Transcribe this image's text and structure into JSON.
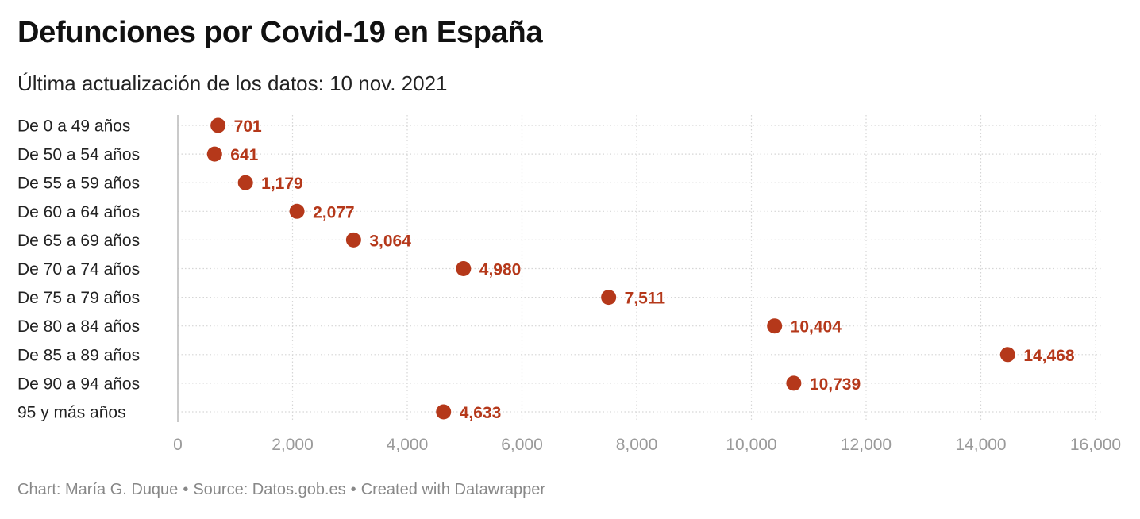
{
  "title": "Defunciones por Covid-19 en España",
  "subtitle": "Última actualización de los datos: 10 nov. 2021",
  "footer": {
    "chart_by": "Chart: María G. Duque",
    "source": "Source: Datos.gob.es",
    "created_with": "Created with Datawrapper",
    "separator": "•"
  },
  "colors": {
    "dot": "#b5381a",
    "value_label": "#b5381a",
    "grid": "#d6d6d6",
    "axis_text": "#9a9a9a"
  },
  "chart_data": {
    "type": "scatter",
    "categories": [
      "De 0 a 49 años",
      "De 50 a 54 años",
      "De 55 a 59 años",
      "De 60 a 64 años",
      "De 65 a 69 años",
      "De 70 a 74 años",
      "De 75 a 79 años",
      "De 80 a 84 años",
      "De 85 a 89 años",
      "De 90 a 94 años",
      "95 y más años"
    ],
    "values": [
      701,
      641,
      1179,
      2077,
      3064,
      4980,
      7511,
      10404,
      14468,
      10739,
      4633
    ],
    "value_labels": [
      "701",
      "641",
      "1,179",
      "2,077",
      "3,064",
      "4,980",
      "7,511",
      "10,404",
      "14,468",
      "10,739",
      "4,633"
    ],
    "xlim": [
      0,
      16000
    ],
    "xticks": [
      0,
      2000,
      4000,
      6000,
      8000,
      10000,
      12000,
      14000,
      16000
    ],
    "xtick_labels": [
      "0",
      "2,000",
      "4,000",
      "6,000",
      "8,000",
      "10,000",
      "12,000",
      "14,000",
      "16,000"
    ],
    "grid": true,
    "legend": "none"
  }
}
